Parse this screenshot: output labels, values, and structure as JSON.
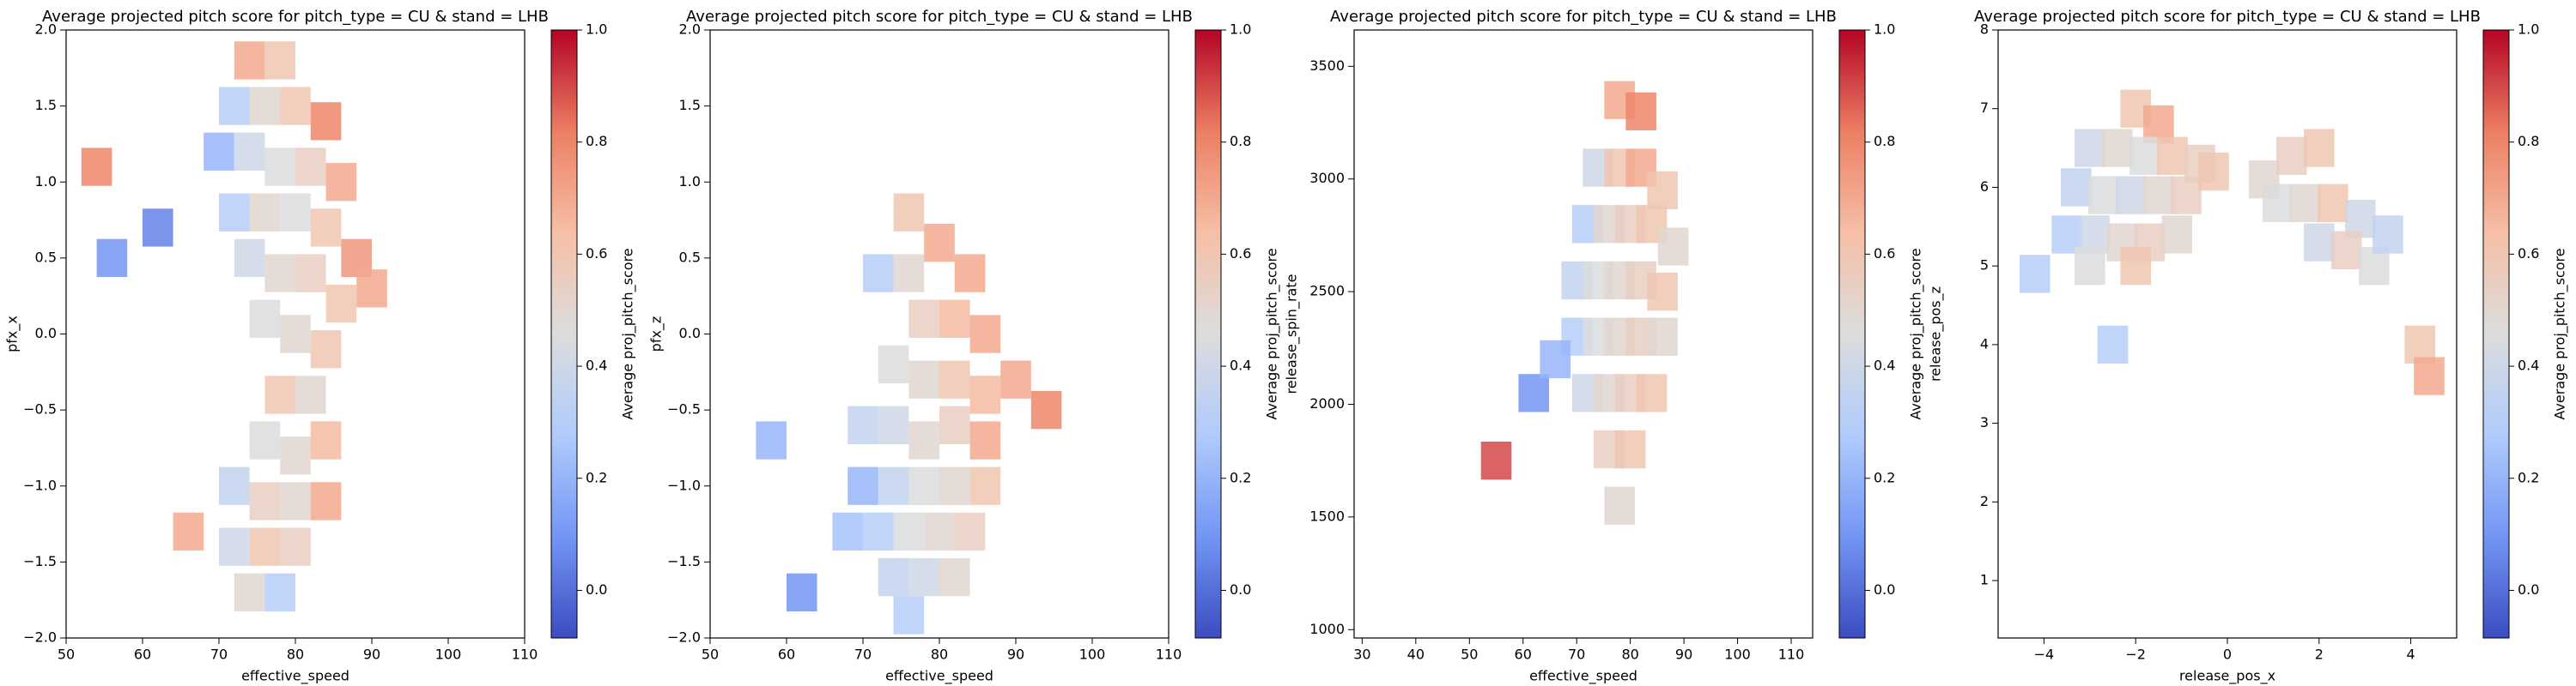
{
  "chart_data": [
    {
      "type": "hexbin",
      "title": "Average projected pitch score for pitch_type = CU & stand = LHB",
      "xlabel": "effective_speed",
      "ylabel": "pfx_x",
      "xlim": [
        50,
        110
      ],
      "xticks": [
        50,
        60,
        70,
        80,
        90,
        100,
        110
      ],
      "ylim": [
        -2,
        2
      ],
      "yticks": [
        {
          "value": -2,
          "label": "−2.0"
        },
        {
          "value": -1.5,
          "label": "−1.5"
        },
        {
          "value": -1,
          "label": "−1.0"
        },
        {
          "value": -0.5,
          "label": "−0.5"
        },
        {
          "value": 0,
          "label": "0.0"
        },
        0.5,
        {
          "value": 1,
          "label": "1.0"
        },
        1.5,
        {
          "value": 2,
          "label": "2.0"
        }
      ],
      "x": [
        74,
        78,
        72,
        76,
        80,
        84,
        70,
        74,
        78,
        82,
        86,
        72,
        76,
        80,
        84,
        88,
        74,
        78,
        82,
        86,
        76,
        80,
        84,
        78,
        82,
        76,
        80,
        84,
        72,
        76,
        80,
        84,
        72,
        76,
        80,
        74,
        78,
        56,
        62,
        54,
        66,
        90
      ],
      "y": [
        1.8,
        1.8,
        1.5,
        1.5,
        1.5,
        1.4,
        1.2,
        1.2,
        1.1,
        1.1,
        1.0,
        0.8,
        0.8,
        0.8,
        0.7,
        0.5,
        0.5,
        0.4,
        0.4,
        0.2,
        0.1,
        0.0,
        -0.1,
        -0.4,
        -0.4,
        -0.7,
        -0.8,
        -0.7,
        -1.0,
        -1.1,
        -1.1,
        -1.1,
        -1.4,
        -1.4,
        -1.4,
        -1.7,
        -1.7,
        0.5,
        0.7,
        1.1,
        -1.3,
        0.3
      ],
      "values": [
        0.7,
        0.6,
        0.3,
        0.5,
        0.6,
        0.8,
        0.2,
        0.4,
        0.45,
        0.55,
        0.7,
        0.3,
        0.5,
        0.45,
        0.6,
        0.75,
        0.4,
        0.5,
        0.55,
        0.6,
        0.45,
        0.5,
        0.6,
        0.6,
        0.5,
        0.45,
        0.5,
        0.65,
        0.35,
        0.55,
        0.5,
        0.7,
        0.4,
        0.6,
        0.55,
        0.5,
        0.3,
        0.1,
        0.05,
        0.8,
        0.7,
        0.7
      ],
      "colormap": [
        "#3b4cc0",
        "#7396f5",
        "#b0cbfc",
        "#dcdddd",
        "#f6bfa6",
        "#ec7f63",
        "#b40426"
      ],
      "colorbar": {
        "label": "Average proj_pitch_score",
        "lim": [
          -0.085,
          1.0
        ],
        "ticks": [
          {
            "value": 0,
            "label": "0.0"
          },
          0.2,
          0.4,
          0.6,
          0.8,
          {
            "value": 1,
            "label": "1.0"
          }
        ]
      }
    },
    {
      "type": "hexbin",
      "title": "Average projected pitch score for pitch_type = CU & stand = LHB",
      "xlabel": "effective_speed",
      "ylabel": "pfx_z",
      "xlim": [
        50,
        110
      ],
      "xticks": [
        50,
        60,
        70,
        80,
        90,
        100,
        110
      ],
      "ylim": [
        -2,
        2
      ],
      "yticks": [
        {
          "value": -2,
          "label": "−2.0"
        },
        {
          "value": -1.5,
          "label": "−1.5"
        },
        {
          "value": -1,
          "label": "−1.0"
        },
        {
          "value": -0.5,
          "label": "−0.5"
        },
        {
          "value": 0,
          "label": "0.0"
        },
        0.5,
        {
          "value": 1,
          "label": "1.0"
        },
        1.5,
        {
          "value": 2,
          "label": "2.0"
        }
      ],
      "x": [
        76,
        80,
        72,
        76,
        84,
        78,
        82,
        86,
        74,
        78,
        82,
        86,
        70,
        74,
        78,
        82,
        86,
        70,
        74,
        78,
        82,
        86,
        68,
        72,
        76,
        80,
        84,
        74,
        78,
        82,
        76,
        58,
        62,
        90,
        94
      ],
      "y": [
        0.8,
        0.6,
        0.4,
        0.4,
        0.4,
        0.1,
        0.1,
        0.0,
        -0.2,
        -0.3,
        -0.3,
        -0.4,
        -0.6,
        -0.6,
        -0.7,
        -0.6,
        -0.7,
        -1.0,
        -1.0,
        -1.0,
        -1.0,
        -1.0,
        -1.3,
        -1.3,
        -1.3,
        -1.3,
        -1.3,
        -1.6,
        -1.6,
        -1.6,
        -1.85,
        -0.7,
        -1.7,
        -0.3,
        -0.5
      ],
      "values": [
        0.6,
        0.7,
        0.3,
        0.5,
        0.7,
        0.55,
        0.65,
        0.7,
        0.45,
        0.5,
        0.6,
        0.65,
        0.35,
        0.4,
        0.5,
        0.55,
        0.7,
        0.2,
        0.35,
        0.45,
        0.5,
        0.6,
        0.25,
        0.3,
        0.45,
        0.5,
        0.55,
        0.35,
        0.4,
        0.5,
        0.3,
        0.2,
        0.1,
        0.7,
        0.8
      ],
      "colormap": [
        "#3b4cc0",
        "#7396f5",
        "#b0cbfc",
        "#dcdddd",
        "#f6bfa6",
        "#ec7f63",
        "#b40426"
      ],
      "colorbar": {
        "label": "Average proj_pitch_score",
        "lim": [
          -0.085,
          1.0
        ],
        "ticks": [
          {
            "value": 0,
            "label": "0.0"
          },
          0.2,
          0.4,
          0.6,
          0.8,
          {
            "value": 1,
            "label": "1.0"
          }
        ]
      }
    },
    {
      "type": "hexbin",
      "title": "Average projected pitch score for pitch_type = CU & stand = LHB",
      "xlabel": "effective_speed",
      "ylabel": "release_spin_rate",
      "xlim": [
        28.5,
        114
      ],
      "xticks": [
        30,
        40,
        50,
        60,
        70,
        80,
        90,
        100,
        110
      ],
      "ylim": [
        963,
        3661
      ],
      "yticks": [
        1000,
        1500,
        2000,
        2500,
        3000,
        3500
      ],
      "x": [
        78,
        82,
        74,
        78,
        82,
        86,
        72,
        76,
        80,
        84,
        88,
        70,
        74,
        78,
        82,
        86,
        70,
        74,
        78,
        82,
        86,
        72,
        76,
        80,
        84,
        76,
        80,
        78,
        62,
        55,
        66
      ],
      "y": [
        3350,
        3300,
        3050,
        3050,
        3050,
        2950,
        2800,
        2800,
        2800,
        2800,
        2700,
        2550,
        2550,
        2550,
        2550,
        2500,
        2300,
        2300,
        2300,
        2300,
        2300,
        2050,
        2050,
        2050,
        2050,
        1800,
        1800,
        1550,
        2050,
        1750,
        2200
      ],
      "values": [
        0.7,
        0.8,
        0.4,
        0.6,
        0.7,
        0.6,
        0.3,
        0.5,
        0.55,
        0.6,
        0.5,
        0.35,
        0.45,
        0.5,
        0.55,
        0.6,
        0.3,
        0.45,
        0.5,
        0.55,
        0.5,
        0.4,
        0.5,
        0.55,
        0.6,
        0.55,
        0.6,
        0.5,
        0.1,
        0.9,
        0.2
      ],
      "colormap": [
        "#3b4cc0",
        "#7396f5",
        "#b0cbfc",
        "#dcdddd",
        "#f6bfa6",
        "#ec7f63",
        "#b40426"
      ],
      "colorbar": {
        "label": "Average proj_pitch_score",
        "lim": [
          -0.085,
          1.0
        ],
        "ticks": [
          {
            "value": 0,
            "label": "0.0"
          },
          0.2,
          0.4,
          0.6,
          0.8,
          {
            "value": 1,
            "label": "1.0"
          }
        ]
      }
    },
    {
      "type": "hexbin",
      "title": "Average projected pitch score for pitch_type = CU & stand = LHB",
      "xlabel": "release_pos_x",
      "ylabel": "release_pos_z",
      "xlim": [
        -5,
        5
      ],
      "xticks": [
        {
          "value": -4,
          "label": "−4"
        },
        {
          "value": -2,
          "label": "−2"
        },
        0,
        2,
        4
      ],
      "ylim": [
        0.27,
        8
      ],
      "yticks": [
        1,
        2,
        3,
        4,
        5,
        6,
        7,
        8
      ],
      "x": [
        -2,
        -1.5,
        -3,
        -2.4,
        -1.8,
        -1.2,
        -0.6,
        -3.3,
        -2.7,
        -2.1,
        -1.5,
        -0.9,
        -0.3,
        -3.5,
        -2.9,
        -2.3,
        -1.7,
        -1.1,
        -3.0,
        -2.0,
        0.8,
        1.4,
        2.0,
        1.1,
        1.7,
        2.3,
        2.9,
        2.0,
        2.6,
        3.2,
        3.5,
        4.2,
        4.4,
        -4.2,
        -2.5
      ],
      "y": [
        7.0,
        6.8,
        6.5,
        6.5,
        6.4,
        6.4,
        6.3,
        6.0,
        5.9,
        5.9,
        5.9,
        5.9,
        6.2,
        5.4,
        5.4,
        5.3,
        5.3,
        5.4,
        5.0,
        5.0,
        6.1,
        6.4,
        6.5,
        5.8,
        5.8,
        5.8,
        5.6,
        5.3,
        5.2,
        5.0,
        5.4,
        4.0,
        3.6,
        4.9,
        4.0
      ],
      "values": [
        0.6,
        0.7,
        0.4,
        0.5,
        0.45,
        0.6,
        0.55,
        0.35,
        0.45,
        0.4,
        0.5,
        0.55,
        0.6,
        0.3,
        0.4,
        0.5,
        0.55,
        0.5,
        0.45,
        0.6,
        0.5,
        0.55,
        0.6,
        0.45,
        0.5,
        0.6,
        0.4,
        0.4,
        0.55,
        0.45,
        0.35,
        0.6,
        0.7,
        0.3,
        0.3
      ],
      "colormap": [
        "#3b4cc0",
        "#7396f5",
        "#b0cbfc",
        "#dcdddd",
        "#f6bfa6",
        "#ec7f63",
        "#b40426"
      ],
      "colorbar": {
        "label": "Average proj_pitch_score",
        "lim": [
          -0.085,
          1.0
        ],
        "ticks": [
          {
            "value": 0,
            "label": "0.0"
          },
          0.2,
          0.4,
          0.6,
          0.8,
          {
            "value": 1,
            "label": "1.0"
          }
        ]
      }
    }
  ]
}
